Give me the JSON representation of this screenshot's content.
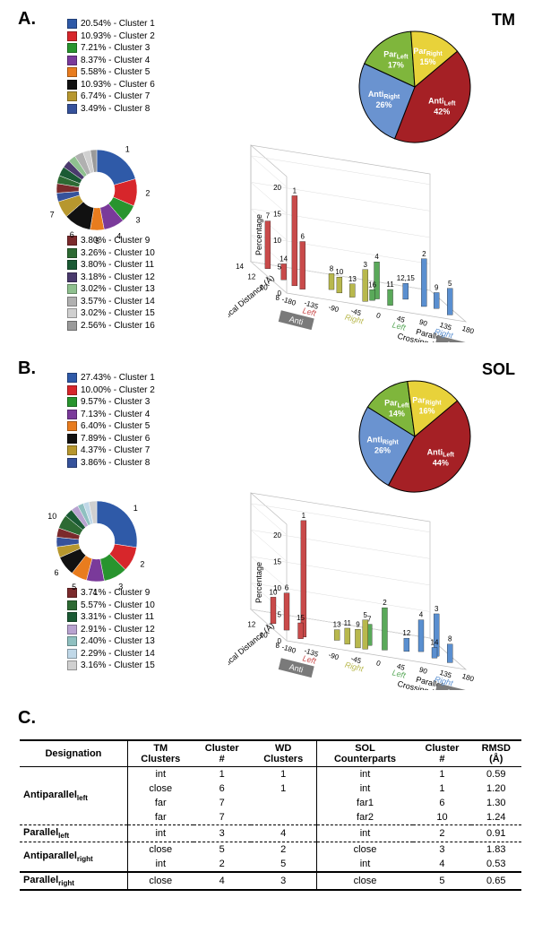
{
  "panelA": {
    "label": "A.",
    "title": "TM",
    "legend1": [
      {
        "pct": "20.54%",
        "name": "Cluster 1",
        "color": "#2f5aa8"
      },
      {
        "pct": "10.93%",
        "name": "Cluster 2",
        "color": "#d7262b"
      },
      {
        "pct": "7.21%",
        "name": "Cluster 3",
        "color": "#28942e"
      },
      {
        "pct": "8.37%",
        "name": "Cluster 4",
        "color": "#7a3a9a"
      },
      {
        "pct": "5.58%",
        "name": "Cluster 5",
        "color": "#e87c1e"
      },
      {
        "pct": "10.93%",
        "name": "Cluster 6",
        "color": "#111111"
      },
      {
        "pct": "6.74%",
        "name": "Cluster 7",
        "color": "#b7972e"
      },
      {
        "pct": "3.49%",
        "name": "Cluster 8",
        "color": "#36529b"
      }
    ],
    "legend2": [
      {
        "pct": "3.80%",
        "name": "Cluster 9",
        "color": "#7b2a2c"
      },
      {
        "pct": "3.26%",
        "name": "Cluster 10",
        "color": "#2d6a33"
      },
      {
        "pct": "3.80%",
        "name": "Cluster 11",
        "color": "#1a5a34"
      },
      {
        "pct": "3.18%",
        "name": "Cluster 12",
        "color": "#4a3a6d"
      },
      {
        "pct": "3.02%",
        "name": "Cluster 13",
        "color": "#8fc08f"
      },
      {
        "pct": "3.57%",
        "name": "Cluster 14",
        "color": "#b0b0b0"
      },
      {
        "pct": "3.02%",
        "name": "Cluster 15",
        "color": "#d0d0d0"
      },
      {
        "pct": "2.56%",
        "name": "Cluster 16",
        "color": "#9a9a9a"
      }
    ],
    "donut_labels": [
      "1",
      "2",
      "3",
      "4",
      "5",
      "6",
      "7"
    ],
    "pie": [
      {
        "label": "Anti",
        "sub": "Left",
        "pct": "42%",
        "value": 42,
        "color": "#a52025"
      },
      {
        "label": "Anti",
        "sub": "Right",
        "pct": "26%",
        "value": 26,
        "color": "#6a93d0"
      },
      {
        "label": "Par",
        "sub": "Left",
        "pct": "17%",
        "value": 17,
        "color": "#7fb63c"
      },
      {
        "label": "Par",
        "sub": "Right",
        "pct": "15%",
        "value": 15,
        "color": "#e8d23a"
      }
    ],
    "chart3d": {
      "y_label": "Percentage",
      "y_ticks": [
        "0",
        "5",
        "10",
        "15",
        "20"
      ],
      "z_label": "Helical Distance (Å)",
      "z_ticks": [
        "8",
        "10",
        "12",
        "14"
      ],
      "x_label": "Crossing Angle (°)",
      "x_sublabel": "Parallel",
      "x_ticks": [
        "-180",
        "-135",
        "-90",
        "-45",
        "0",
        "45",
        "90",
        "135",
        "180"
      ],
      "anti_boxes": [
        "Anti",
        "Anti"
      ],
      "region_labels": [
        {
          "text": "Left",
          "color": "#c94a4a"
        },
        {
          "text": "Right",
          "color": "#b8b84d"
        },
        {
          "text": "Left",
          "color": "#5aa95a"
        },
        {
          "text": "Right",
          "color": "#5a8fd0"
        }
      ],
      "bars": [
        {
          "n": "7",
          "x": -158,
          "z": 13,
          "h": 9,
          "c": "#c94a4a"
        },
        {
          "n": "14",
          "x": -150,
          "z": 11,
          "h": 3,
          "c": "#c94a4a"
        },
        {
          "n": "1",
          "x": -140,
          "z": 10,
          "h": 17,
          "c": "#c94a4a"
        },
        {
          "n": "6",
          "x": -130,
          "z": 9.5,
          "h": 9,
          "c": "#c94a4a"
        },
        {
          "n": "8",
          "x": -60,
          "z": 10.5,
          "h": 3,
          "c": "#b8b84d"
        },
        {
          "n": "10",
          "x": -50,
          "z": 10,
          "h": 3,
          "c": "#b8b84d"
        },
        {
          "n": "13",
          "x": -30,
          "z": 9.5,
          "h": 2.5,
          "c": "#b8b84d"
        },
        {
          "n": "3",
          "x": -10,
          "z": 9,
          "h": 6,
          "c": "#b8b84d"
        },
        {
          "n": "16",
          "x": 10,
          "z": 9.5,
          "h": 2,
          "c": "#5aa95a"
        },
        {
          "n": "4",
          "x": 25,
          "z": 10,
          "h": 7,
          "c": "#5aa95a"
        },
        {
          "n": "11",
          "x": 40,
          "z": 9,
          "h": 3,
          "c": "#5aa95a"
        },
        {
          "n": "12,15",
          "x": 95,
          "z": 11,
          "h": 3,
          "c": "#5a8fd0"
        },
        {
          "n": "2",
          "x": 120,
          "z": 10,
          "h": 9,
          "c": "#5a8fd0"
        },
        {
          "n": "9",
          "x": 145,
          "z": 10,
          "h": 3,
          "c": "#5a8fd0"
        },
        {
          "n": "5",
          "x": 160,
          "z": 9,
          "h": 5,
          "c": "#5a8fd0"
        }
      ]
    }
  },
  "panelB": {
    "label": "B.",
    "title": "SOL",
    "legend1": [
      {
        "pct": "27.43%",
        "name": "Cluster 1",
        "color": "#2f5aa8"
      },
      {
        "pct": "10.00%",
        "name": "Cluster 2",
        "color": "#d7262b"
      },
      {
        "pct": "9.57%",
        "name": "Cluster 3",
        "color": "#28942e"
      },
      {
        "pct": "7.13%",
        "name": "Cluster 4",
        "color": "#7a3a9a"
      },
      {
        "pct": "6.40%",
        "name": "Cluster 5",
        "color": "#e87c1e"
      },
      {
        "pct": "7.89%",
        "name": "Cluster 6",
        "color": "#111111"
      },
      {
        "pct": "4.37%",
        "name": "Cluster 7",
        "color": "#b7972e"
      },
      {
        "pct": "3.86%",
        "name": "Cluster 8",
        "color": "#36529b"
      }
    ],
    "legend2": [
      {
        "pct": "3.71%",
        "name": "Cluster 9",
        "color": "#7b2a2c"
      },
      {
        "pct": "5.57%",
        "name": "Cluster 10",
        "color": "#2d6a33"
      },
      {
        "pct": "3.31%",
        "name": "Cluster 11",
        "color": "#1a5a34"
      },
      {
        "pct": "2.91%",
        "name": "Cluster 12",
        "color": "#b8a3d0"
      },
      {
        "pct": "2.40%",
        "name": "Cluster 13",
        "color": "#8fc0c0"
      },
      {
        "pct": "2.29%",
        "name": "Cluster 14",
        "color": "#c0d8e8"
      },
      {
        "pct": "3.16%",
        "name": "Cluster 15",
        "color": "#d0d0d0"
      }
    ],
    "donut_labels": [
      "1",
      "2",
      "3",
      "4",
      "5",
      "6",
      "10"
    ],
    "pie": [
      {
        "label": "Anti",
        "sub": "Left",
        "pct": "44%",
        "value": 44,
        "color": "#a52025"
      },
      {
        "label": "Anti",
        "sub": "Right",
        "pct": "26%",
        "value": 26,
        "color": "#6a93d0"
      },
      {
        "label": "Par",
        "sub": "Left",
        "pct": "14%",
        "value": 14,
        "color": "#7fb63c"
      },
      {
        "label": "Par",
        "sub": "Right",
        "pct": "16%",
        "value": 16,
        "color": "#e8d23a"
      }
    ],
    "chart3d": {
      "y_label": "Percentage",
      "y_ticks": [
        "0",
        "5",
        "10",
        "15",
        "20"
      ],
      "z_label": "Helical Distance (Å)",
      "z_ticks": [
        "8",
        "10",
        "12"
      ],
      "x_label": "Crossing Angle (°)",
      "x_sublabel": "Parallel",
      "x_ticks": [
        "-180",
        "-135",
        "-90",
        "-45",
        "0",
        "45",
        "90",
        "135",
        "180"
      ],
      "anti_boxes": [
        "Anti",
        "Anti"
      ],
      "region_labels": [
        {
          "text": "Left",
          "color": "#c94a4a"
        },
        {
          "text": "Right",
          "color": "#b8b84d"
        },
        {
          "text": "Left",
          "color": "#5aa95a"
        },
        {
          "text": "Right",
          "color": "#5a8fd0"
        }
      ],
      "bars": [
        {
          "n": "10",
          "x": -165,
          "z": 11.5,
          "h": 5,
          "c": "#c94a4a"
        },
        {
          "n": "6",
          "x": -150,
          "z": 10.5,
          "h": 7,
          "c": "#c94a4a"
        },
        {
          "n": "15",
          "x": -140,
          "z": 9,
          "h": 3,
          "c": "#c94a4a"
        },
        {
          "n": "1",
          "x": -128,
          "z": 9.5,
          "h": 22,
          "c": "#c94a4a"
        },
        {
          "n": "13",
          "x": -55,
          "z": 10,
          "h": 2,
          "c": "#b8b84d"
        },
        {
          "n": "11",
          "x": -40,
          "z": 9.5,
          "h": 3,
          "c": "#b8b84d"
        },
        {
          "n": "9",
          "x": -25,
          "z": 9,
          "h": 3.5,
          "c": "#b8b84d"
        },
        {
          "n": "5",
          "x": -10,
          "z": 9,
          "h": 5.5,
          "c": "#b8b84d"
        },
        {
          "n": "7",
          "x": 10,
          "z": 10,
          "h": 4,
          "c": "#5aa95a"
        },
        {
          "n": "2",
          "x": 35,
          "z": 9.5,
          "h": 8,
          "c": "#5aa95a"
        },
        {
          "n": "12",
          "x": 85,
          "z": 10,
          "h": 2.5,
          "c": "#5a8fd0"
        },
        {
          "n": "4",
          "x": 120,
          "z": 10.5,
          "h": 6,
          "c": "#5a8fd0"
        },
        {
          "n": "14",
          "x": 135,
          "z": 9.5,
          "h": 2,
          "c": "#5a8fd0"
        },
        {
          "n": "3",
          "x": 145,
          "z": 10,
          "h": 8,
          "c": "#5a8fd0"
        },
        {
          "n": "8",
          "x": 160,
          "z": 9,
          "h": 3.5,
          "c": "#5a8fd0"
        }
      ]
    }
  },
  "panelC": {
    "label": "C.",
    "headers": [
      "Designation",
      "TM Clusters",
      "Cluster #",
      "WD Clusters",
      "SOL Counterparts",
      "Cluster #",
      "RMSD (Å)"
    ],
    "groups": [
      {
        "name": "Antiparallel",
        "sub": "left",
        "rows": [
          [
            "int",
            "1",
            "1",
            "int",
            "1",
            "0.59"
          ],
          [
            "close",
            "6",
            "1",
            "int",
            "1",
            "1.20"
          ],
          [
            "far",
            "7",
            "",
            "far1",
            "6",
            "1.30"
          ],
          [
            "far",
            "7",
            "",
            "far2",
            "10",
            "1.24"
          ]
        ]
      },
      {
        "name": "Parallel",
        "sub": "left",
        "rows": [
          [
            "int",
            "3",
            "4",
            "int",
            "2",
            "0.91"
          ]
        ]
      },
      {
        "name": "Antiparallel",
        "sub": "right",
        "rows": [
          [
            "close",
            "5",
            "2",
            "close",
            "3",
            "1.83"
          ],
          [
            "int",
            "2",
            "5",
            "int",
            "4",
            "0.53"
          ]
        ]
      },
      {
        "name": "Parallel",
        "sub": "right",
        "rows": [
          [
            "close",
            "4",
            "3",
            "close",
            "5",
            "0.65"
          ]
        ]
      }
    ]
  }
}
